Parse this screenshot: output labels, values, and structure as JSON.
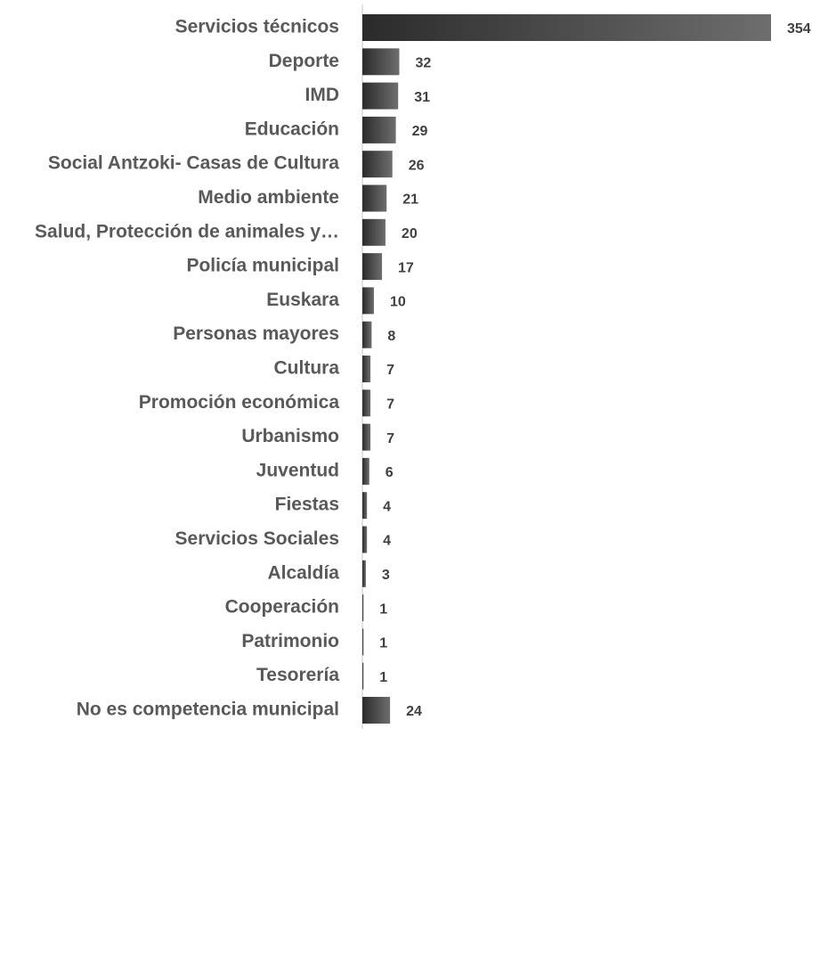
{
  "chart_data": {
    "type": "bar",
    "orientation": "horizontal",
    "categories": [
      "Servicios técnicos",
      "Deporte",
      "IMD",
      "Educación",
      "Social Antzoki- Casas de Cultura",
      "Medio ambiente",
      "Salud, Protección de animales y…",
      "Policía municipal",
      "Euskara",
      "Personas mayores",
      "Cultura",
      "Promoción económica",
      "Urbanismo",
      "Juventud",
      "Fiestas",
      "Servicios Sociales",
      "Alcaldía",
      "Cooperación",
      "Patrimonio",
      "Tesorería",
      "No es competencia municipal"
    ],
    "values": [
      354,
      32,
      31,
      29,
      26,
      21,
      20,
      17,
      10,
      8,
      7,
      7,
      7,
      6,
      4,
      4,
      3,
      1,
      1,
      1,
      24
    ],
    "color": "#404040"
  }
}
